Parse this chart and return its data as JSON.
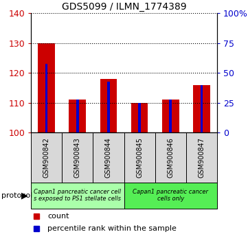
{
  "title": "GDS5099 / ILMN_1774389",
  "samples": [
    "GSM900842",
    "GSM900843",
    "GSM900844",
    "GSM900845",
    "GSM900846",
    "GSM900847"
  ],
  "red_values": [
    130,
    111,
    118,
    110,
    111,
    116
  ],
  "blue_values": [
    123,
    111,
    117,
    110,
    111,
    116
  ],
  "ylim_left": [
    100,
    140
  ],
  "ylim_right": [
    0,
    100
  ],
  "yticks_left": [
    100,
    110,
    120,
    130,
    140
  ],
  "yticks_right": [
    0,
    25,
    50,
    75,
    100
  ],
  "ytick_labels_right": [
    "0",
    "25",
    "50",
    "75",
    "100%"
  ],
  "red_color": "#cc0000",
  "blue_color": "#0000cc",
  "red_bar_width": 0.55,
  "blue_bar_width": 0.08,
  "group1_color": "#aaffaa",
  "group2_color": "#55ee55",
  "group1_label_line1": "Capan1 pancreatic cancer cell",
  "group1_label_line2": "s exposed to PS1 stellate cells",
  "group2_label_line1": "Capan1 pancreatic cancer",
  "group2_label_line2": "cells only",
  "protocol_label": "protocol",
  "legend_count_label": "count",
  "legend_pct_label": "percentile rank within the sample",
  "sample_box_color": "#d8d8d8",
  "plot_bg": "#ffffff",
  "fig_bg": "#ffffff"
}
